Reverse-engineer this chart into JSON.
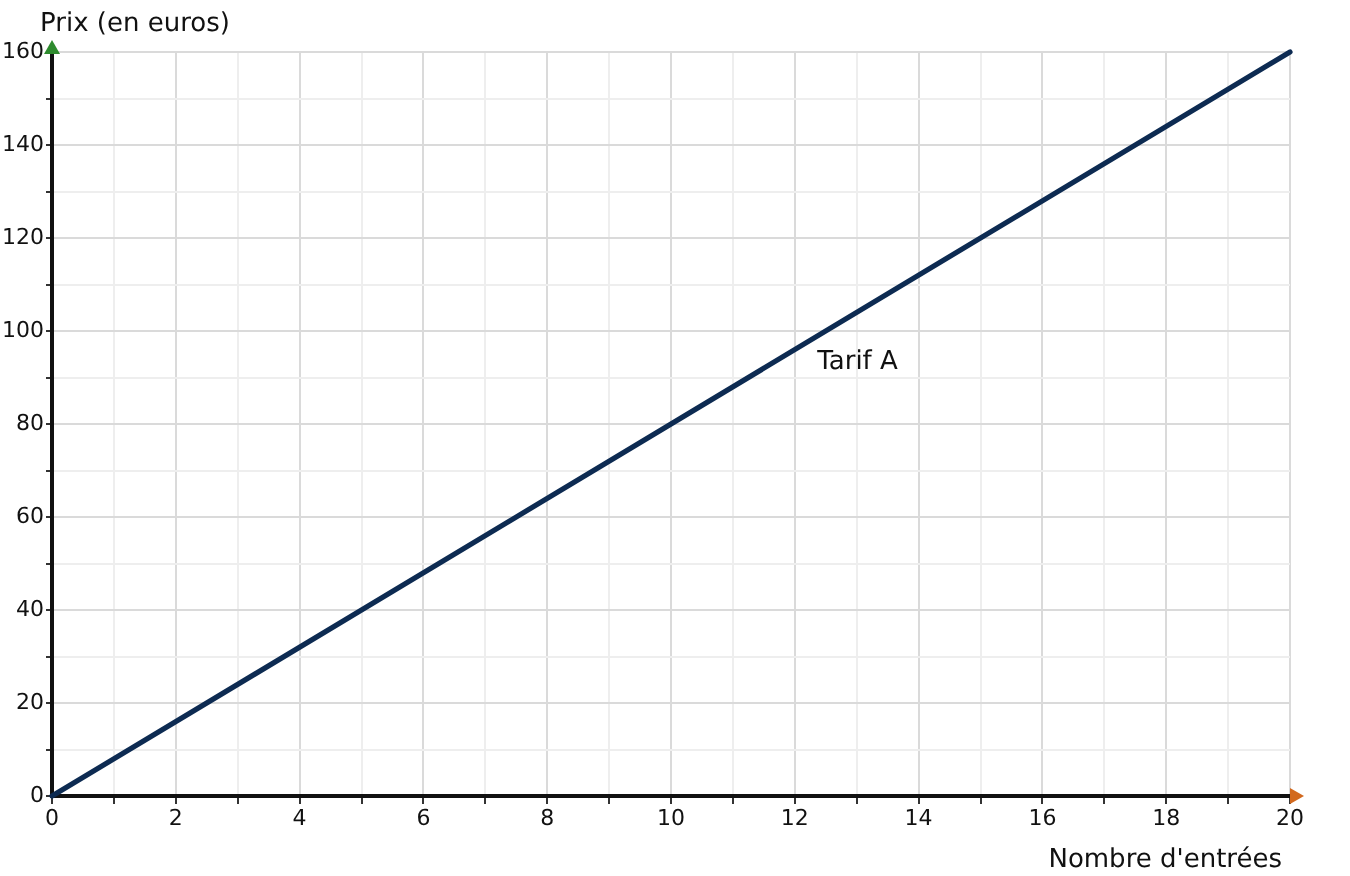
{
  "chart_data": {
    "type": "line",
    "xlabel": "Nombre d'entrées",
    "ylabel": "Prix (en euros)",
    "x": [
      0,
      20
    ],
    "series": [
      {
        "name": "Tarif A",
        "color": "#0d2b52",
        "values": [
          0,
          160
        ]
      }
    ],
    "xlim": [
      0,
      20
    ],
    "ylim": [
      0,
      160
    ],
    "xticks": [
      0,
      {
        "value": 1,
        "label": null
      },
      2,
      {
        "value": 3,
        "label": null
      },
      4,
      {
        "value": 5,
        "label": null
      },
      6,
      {
        "value": 7,
        "label": null
      },
      8,
      {
        "value": 9,
        "label": null
      },
      10,
      {
        "value": 11,
        "label": null
      },
      12,
      {
        "value": 13,
        "label": null
      },
      14,
      {
        "value": 15,
        "label": null
      },
      16,
      {
        "value": 17,
        "label": null
      },
      18,
      {
        "value": 19,
        "label": null
      },
      20
    ],
    "yticks": [
      0,
      {
        "value": 10,
        "label": null
      },
      20,
      {
        "value": 30,
        "label": null
      },
      40,
      {
        "value": 50,
        "label": null
      },
      60,
      {
        "value": 70,
        "label": null
      },
      80,
      {
        "value": 90,
        "label": null
      },
      100,
      {
        "value": 110,
        "label": null
      },
      120,
      {
        "value": 130,
        "label": null
      },
      140,
      {
        "value": 150,
        "label": null
      },
      160
    ],
    "grid": true,
    "legend": false,
    "marker": "none",
    "line_style": "solid"
  }
}
